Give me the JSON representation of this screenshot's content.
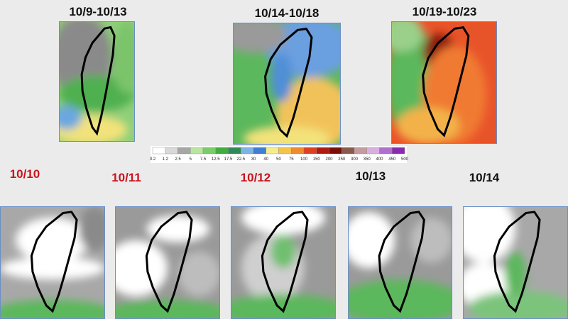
{
  "periods": [
    "10/9-10/13",
    "10/14-10/18",
    "10/19-10/23"
  ],
  "legend": {
    "labels": [
      "0.2",
      "1.2",
      "2.5",
      "5",
      "7.5",
      "12.5",
      "17.5",
      "22.5",
      "30",
      "40",
      "50",
      "75",
      "100",
      "150",
      "200",
      "250",
      "300",
      "350",
      "400",
      "450",
      "500"
    ]
  },
  "days": [
    "10/10",
    "10/11",
    "10/12",
    "10/13",
    "10/14"
  ]
}
